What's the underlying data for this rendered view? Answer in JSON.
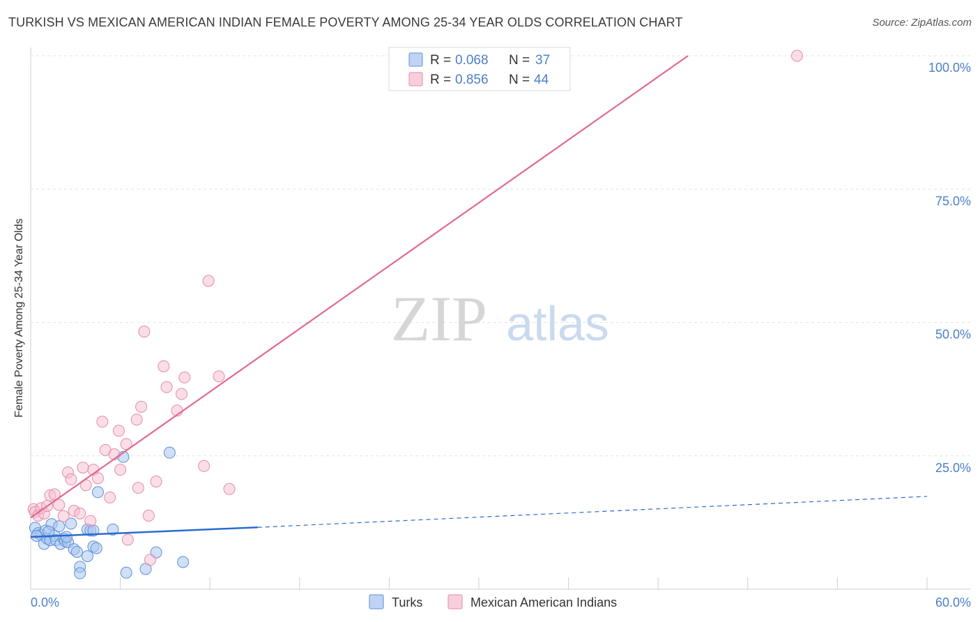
{
  "title": "TURKISH VS MEXICAN AMERICAN INDIAN FEMALE POVERTY AMONG 25-34 YEAR OLDS CORRELATION CHART",
  "source": "Source: ZipAtlas.com",
  "watermark": {
    "zip": "ZIP",
    "atlas": "atlas"
  },
  "colors": {
    "turks": "#a9c6ef",
    "turks_stroke": "#5b8fd6",
    "turks_line": "#2a6ad1",
    "mexican": "#f6bdd0",
    "mexican_stroke": "#e58aa9",
    "mexican_line": "#e2688f",
    "axis_label": "#4a7fc8"
  },
  "chart_data": {
    "type": "scatter",
    "title": "TURKISH VS MEXICAN AMERICAN INDIAN FEMALE POVERTY AMONG 25-34 YEAR OLDS CORRELATION CHART",
    "xlabel": "",
    "ylabel": "Female Poverty Among 25-34 Year Olds",
    "xlim": [
      0,
      60
    ],
    "ylim": [
      0,
      100
    ],
    "x_tick_labels": [
      "0.0%",
      "60.0%"
    ],
    "y_ticks": [
      25,
      50,
      75,
      100
    ],
    "y_tick_labels": [
      "25.0%",
      "50.0%",
      "75.0%",
      "100.0%"
    ],
    "grid": true,
    "legend_position": "top-center",
    "stats": [
      {
        "r_label": "R =",
        "r_value": "0.068",
        "n_label": "N =",
        "n_value": "37"
      },
      {
        "r_label": "R =",
        "r_value": "0.856",
        "n_label": "N =",
        "n_value": "44"
      }
    ],
    "series": [
      {
        "name": "Turks",
        "trend": {
          "x0": 0,
          "y0": 9.8,
          "x1": 15.2,
          "y1": 11.6,
          "dash_to_x": 60,
          "dash_to_y": 17.4
        },
        "points": [
          [
            0.3,
            11.5
          ],
          [
            0.5,
            10.5
          ],
          [
            0.7,
            10.2
          ],
          [
            0.9,
            8.5
          ],
          [
            1.0,
            11.0
          ],
          [
            1.1,
            9.5
          ],
          [
            1.3,
            9.2
          ],
          [
            1.4,
            12.2
          ],
          [
            1.6,
            10.0
          ],
          [
            1.7,
            9.2
          ],
          [
            1.9,
            11.8
          ],
          [
            2.0,
            8.5
          ],
          [
            2.2,
            9.5
          ],
          [
            2.3,
            9.0
          ],
          [
            2.5,
            8.8
          ],
          [
            2.7,
            12.3
          ],
          [
            2.9,
            7.5
          ],
          [
            3.1,
            7.0
          ],
          [
            3.3,
            4.2
          ],
          [
            3.3,
            3.0
          ],
          [
            3.8,
            11.2
          ],
          [
            3.8,
            6.2
          ],
          [
            4.0,
            11.0
          ],
          [
            4.2,
            8.0
          ],
          [
            4.2,
            11.0
          ],
          [
            4.4,
            7.7
          ],
          [
            4.5,
            18.2
          ],
          [
            5.5,
            11.2
          ],
          [
            6.2,
            24.8
          ],
          [
            6.4,
            3.1
          ],
          [
            7.7,
            3.8
          ],
          [
            8.4,
            6.9
          ],
          [
            9.3,
            25.6
          ],
          [
            10.2,
            5.1
          ],
          [
            0.4,
            10.0
          ],
          [
            1.2,
            10.8
          ],
          [
            2.4,
            9.8
          ]
        ]
      },
      {
        "name": "Mexican American Indians",
        "trend": {
          "x0": 0,
          "y0": 13.4,
          "x1": 44.0,
          "y1": 100
        },
        "points": [
          [
            0.2,
            15.0
          ],
          [
            0.3,
            14.5
          ],
          [
            0.5,
            13.8
          ],
          [
            0.7,
            15.2
          ],
          [
            0.9,
            14.2
          ],
          [
            1.1,
            15.6
          ],
          [
            1.3,
            17.6
          ],
          [
            1.6,
            17.8
          ],
          [
            1.9,
            15.8
          ],
          [
            2.2,
            13.7
          ],
          [
            2.5,
            21.9
          ],
          [
            2.7,
            20.6
          ],
          [
            2.9,
            14.7
          ],
          [
            3.3,
            14.2
          ],
          [
            3.5,
            22.8
          ],
          [
            3.7,
            19.5
          ],
          [
            4.0,
            12.8
          ],
          [
            4.2,
            22.4
          ],
          [
            4.5,
            20.8
          ],
          [
            4.8,
            31.4
          ],
          [
            5.0,
            26.1
          ],
          [
            5.3,
            17.2
          ],
          [
            5.6,
            25.3
          ],
          [
            5.9,
            29.7
          ],
          [
            6.0,
            22.4
          ],
          [
            6.4,
            27.2
          ],
          [
            6.5,
            9.3
          ],
          [
            7.1,
            31.8
          ],
          [
            7.2,
            19.0
          ],
          [
            7.4,
            34.2
          ],
          [
            7.6,
            48.3
          ],
          [
            7.9,
            13.8
          ],
          [
            8.0,
            5.5
          ],
          [
            8.4,
            20.2
          ],
          [
            8.9,
            41.8
          ],
          [
            9.1,
            37.9
          ],
          [
            9.8,
            33.5
          ],
          [
            10.1,
            36.6
          ],
          [
            10.3,
            39.7
          ],
          [
            11.6,
            23.1
          ],
          [
            11.9,
            57.8
          ],
          [
            12.6,
            39.9
          ],
          [
            13.3,
            18.8
          ],
          [
            51.3,
            100.0
          ]
        ]
      }
    ]
  },
  "legend": {
    "turks": "Turks",
    "mexican": "Mexican American Indians"
  }
}
